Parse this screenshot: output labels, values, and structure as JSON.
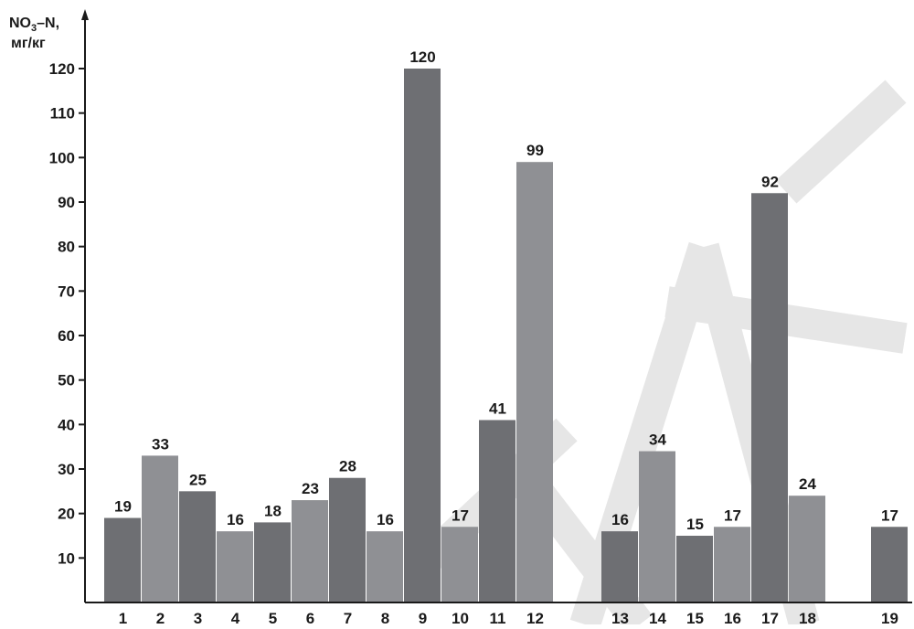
{
  "chart_data": {
    "type": "bar",
    "y_title_line1_main": "NO",
    "y_title_line1_sub": "3",
    "y_title_line1_rest": "–N,",
    "y_title_line2": "мг/кг",
    "ylim": [
      0,
      120
    ],
    "yticks": [
      10,
      20,
      30,
      40,
      50,
      60,
      70,
      80,
      90,
      100,
      110,
      120
    ],
    "grid": false,
    "watermark": "НАУКА",
    "categories": [
      "1",
      "2",
      "3",
      "4",
      "5",
      "6",
      "7",
      "8",
      "9",
      "10",
      "11",
      "12",
      "13",
      "14",
      "15",
      "16",
      "17",
      "18",
      "19"
    ],
    "values": [
      19,
      33,
      25,
      16,
      18,
      23,
      28,
      16,
      120,
      17,
      41,
      99,
      16,
      34,
      15,
      17,
      92,
      24,
      17
    ],
    "colors": [
      "#6e6f73",
      "#8f9094",
      "#6e6f73",
      "#8f9094",
      "#6e6f73",
      "#8f9094",
      "#6e6f73",
      "#8f9094",
      "#6e6f73",
      "#8f9094",
      "#6e6f73",
      "#8f9094",
      "#6e6f73",
      "#8f9094",
      "#6e6f73",
      "#8f9094",
      "#6e6f73",
      "#8f9094",
      "#6e6f73"
    ]
  }
}
